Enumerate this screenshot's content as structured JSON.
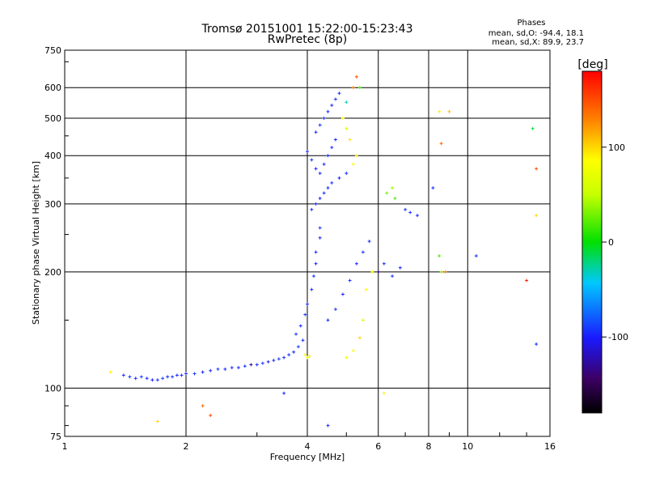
{
  "header": {
    "title": "Tromsø 20151001 15:22:00-15:23:43",
    "subtitle": "RwPretec (8p)"
  },
  "legend_box": {
    "heading": "Phases",
    "line_o": "mean, sd,O: -94.4, 18.1",
    "line_x": "mean, sd,X:  89.9, 23.7"
  },
  "colorbar": {
    "unit_label": "[deg]",
    "range": [
      -180,
      180
    ],
    "ticks": [
      100,
      0,
      -100
    ],
    "tick_labels": [
      "100",
      "0",
      "-100"
    ]
  },
  "chart_data": {
    "type": "scatter",
    "xlabel": "Frequency [MHz]",
    "ylabel": "Stationary phase Virtual Height [km]",
    "x_scale": "log",
    "y_scale": "log",
    "xlim": [
      1,
      16
    ],
    "ylim": [
      75,
      750
    ],
    "x_ticks": [
      1,
      2,
      4,
      6,
      8,
      10,
      16
    ],
    "x_tick_labels": [
      "1",
      "2",
      "4",
      "6",
      "8",
      "10",
      "16"
    ],
    "y_ticks": [
      75,
      100,
      200,
      300,
      400,
      500,
      600,
      750
    ],
    "y_tick_labels": [
      "75",
      "100",
      "200",
      "300",
      "400",
      "500",
      "600",
      "750"
    ],
    "grid": true,
    "color_by": "phase [deg]",
    "points": [
      [
        1.4,
        108,
        -95
      ],
      [
        1.45,
        107,
        -92
      ],
      [
        1.5,
        106,
        -98
      ],
      [
        1.55,
        107,
        -90
      ],
      [
        1.6,
        106,
        -95
      ],
      [
        1.65,
        105,
        -100
      ],
      [
        1.7,
        105,
        -93
      ],
      [
        1.75,
        106,
        -88
      ],
      [
        1.8,
        107,
        -96
      ],
      [
        1.85,
        107,
        -91
      ],
      [
        1.9,
        108,
        -97
      ],
      [
        1.95,
        108,
        -94
      ],
      [
        2.0,
        109,
        -95
      ],
      [
        2.1,
        109,
        -92
      ],
      [
        2.2,
        110,
        -98
      ],
      [
        2.3,
        111,
        -95
      ],
      [
        2.4,
        112,
        -90
      ],
      [
        2.5,
        112,
        -96
      ],
      [
        2.6,
        113,
        -93
      ],
      [
        2.7,
        113,
        -97
      ],
      [
        2.8,
        114,
        -94
      ],
      [
        2.9,
        115,
        -130
      ],
      [
        3.0,
        115,
        -95
      ],
      [
        3.1,
        116,
        -92
      ],
      [
        3.2,
        117,
        -98
      ],
      [
        3.3,
        118,
        -95
      ],
      [
        3.4,
        119,
        -90
      ],
      [
        3.5,
        120,
        -96
      ],
      [
        3.6,
        122,
        -94
      ],
      [
        3.7,
        124,
        -97
      ],
      [
        3.8,
        128,
        -92
      ],
      [
        3.9,
        133,
        -95
      ],
      [
        3.75,
        138,
        -93
      ],
      [
        3.85,
        145,
        -96
      ],
      [
        3.95,
        155,
        -94
      ],
      [
        4.0,
        165,
        -98
      ],
      [
        4.0,
        120,
        85
      ],
      [
        4.05,
        121,
        90
      ],
      [
        3.95,
        122,
        80
      ],
      [
        4.1,
        180,
        -95
      ],
      [
        4.15,
        195,
        -92
      ],
      [
        4.2,
        210,
        -97
      ],
      [
        4.2,
        225,
        -94
      ],
      [
        4.3,
        245,
        -96
      ],
      [
        4.3,
        260,
        -91
      ],
      [
        4.1,
        290,
        -95
      ],
      [
        4.2,
        300,
        -93
      ],
      [
        4.3,
        310,
        -97
      ],
      [
        4.4,
        320,
        -94
      ],
      [
        4.5,
        330,
        -95
      ],
      [
        4.6,
        340,
        -92
      ],
      [
        4.8,
        350,
        -98
      ],
      [
        5.0,
        360,
        -95
      ],
      [
        5.2,
        380,
        80
      ],
      [
        5.3,
        400,
        90
      ],
      [
        4.0,
        410,
        -95
      ],
      [
        4.1,
        390,
        -92
      ],
      [
        4.2,
        370,
        -97
      ],
      [
        4.3,
        360,
        -94
      ],
      [
        4.4,
        380,
        -96
      ],
      [
        4.5,
        400,
        -93
      ],
      [
        4.6,
        420,
        -95
      ],
      [
        4.7,
        440,
        -98
      ],
      [
        4.2,
        460,
        -95
      ],
      [
        4.3,
        480,
        -92
      ],
      [
        4.4,
        500,
        -97
      ],
      [
        4.5,
        520,
        -94
      ],
      [
        4.6,
        540,
        -96
      ],
      [
        4.7,
        560,
        -93
      ],
      [
        4.8,
        580,
        -95
      ],
      [
        4.9,
        500,
        85
      ],
      [
        5.0,
        470,
        60
      ],
      [
        5.1,
        440,
        95
      ],
      [
        5.2,
        600,
        130
      ],
      [
        5.3,
        640,
        150
      ],
      [
        5.4,
        600,
        20
      ],
      [
        5.0,
        550,
        -30
      ],
      [
        4.5,
        150,
        -95
      ],
      [
        4.7,
        160,
        -92
      ],
      [
        4.9,
        175,
        -97
      ],
      [
        5.1,
        190,
        -94
      ],
      [
        5.3,
        210,
        -96
      ],
      [
        5.5,
        225,
        -93
      ],
      [
        5.7,
        240,
        -95
      ],
      [
        5.0,
        120,
        75
      ],
      [
        5.2,
        125,
        80
      ],
      [
        5.4,
        135,
        100
      ],
      [
        5.5,
        150,
        60
      ],
      [
        5.6,
        180,
        90
      ],
      [
        5.8,
        200,
        85
      ],
      [
        6.0,
        200,
        -130
      ],
      [
        6.2,
        210,
        -95
      ],
      [
        6.5,
        195,
        -92
      ],
      [
        6.8,
        205,
        -97
      ],
      [
        6.3,
        320,
        30
      ],
      [
        6.5,
        330,
        40
      ],
      [
        6.6,
        310,
        20
      ],
      [
        7.0,
        290,
        -95
      ],
      [
        7.2,
        285,
        -92
      ],
      [
        7.5,
        280,
        -97
      ],
      [
        8.2,
        330,
        -95
      ],
      [
        8.5,
        220,
        20
      ],
      [
        8.6,
        200,
        40
      ],
      [
        8.8,
        200,
        130
      ],
      [
        8.5,
        520,
        90
      ],
      [
        9.0,
        520,
        110
      ],
      [
        8.6,
        430,
        140
      ],
      [
        10.5,
        220,
        -95
      ],
      [
        14.0,
        190,
        170
      ],
      [
        14.5,
        470,
        -10
      ],
      [
        14.8,
        370,
        150
      ],
      [
        14.8,
        280,
        100
      ],
      [
        14.8,
        130,
        -95
      ],
      [
        1.3,
        110,
        90
      ],
      [
        1.7,
        82,
        100
      ],
      [
        2.2,
        90,
        140
      ],
      [
        2.3,
        85,
        150
      ],
      [
        3.5,
        97,
        -95
      ],
      [
        4.5,
        80,
        -95
      ],
      [
        6.2,
        97,
        90
      ]
    ]
  }
}
